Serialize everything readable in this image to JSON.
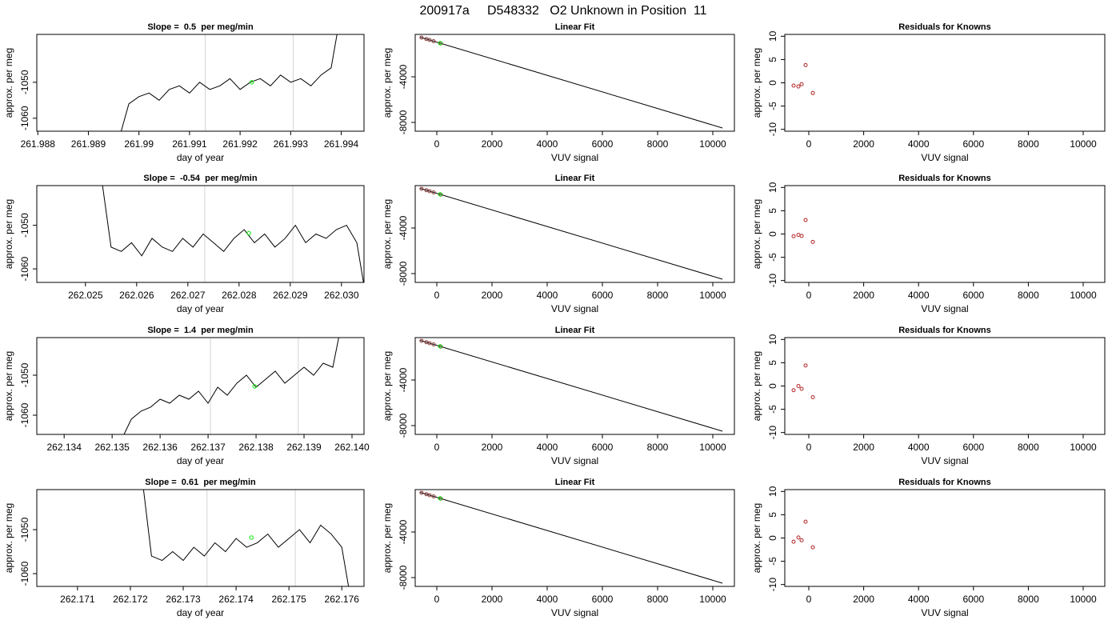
{
  "title": "200917a     D548332   O2 Unknown in Position  11",
  "chart_data": [
    {
      "type": "line",
      "title": "Slope =  0.5  per meg/min",
      "xlabel": "day of year",
      "ylabel": "approx. per meg",
      "x": [
        261.9896,
        261.9898,
        261.99,
        261.9902,
        261.9904,
        261.9906,
        261.9908,
        261.991,
        261.9912,
        261.9914,
        261.9916,
        261.9918,
        261.992,
        261.9922,
        261.9924,
        261.9926,
        261.9928,
        261.993,
        261.9932,
        261.9934,
        261.9936,
        261.9938,
        261.994
      ],
      "values": [
        -1066,
        -1056,
        -1054,
        -1053,
        -1055,
        -1052,
        -1051,
        -1053,
        -1050,
        -1052,
        -1051,
        -1049,
        -1052,
        -1050,
        -1049,
        -1051,
        -1048,
        -1050,
        -1049,
        -1051,
        -1048,
        -1046,
        -1030
      ],
      "color": "#000000",
      "vlines": [
        261.99131,
        261.99305
      ],
      "vline_color": "#d3d3d3",
      "marker": {
        "x": 261.99223,
        "y": -1050,
        "color": "#00ee00"
      },
      "xlim": [
        261.98798,
        261.99445
      ],
      "ylim": [
        -1063.6,
        -1036.7
      ],
      "xticks": [
        261.988,
        261.989,
        261.99,
        261.991,
        261.992,
        261.993,
        261.994
      ],
      "yticks": [
        -1060,
        -1050
      ]
    },
    {
      "type": "scatter",
      "title": "Linear Fit",
      "xlabel": "VUV signal",
      "ylabel": "approx. per meg",
      "x": [
        -554,
        -379,
        -262,
        -117,
        146
      ],
      "values": [
        -558,
        -685,
        -771,
        -876,
        -1067
      ],
      "color": "#8b3a3a",
      "fit": {
        "x": [
          -600,
          10350
        ],
        "values": [
          -525,
          -8491
        ],
        "color": "#000000"
      },
      "marker": {
        "x": 123,
        "y": -1050,
        "color": "#00ee00"
      },
      "xlim": [
        -783,
        10783
      ],
      "ylim": [
        -8772,
        -281
      ],
      "xticks": [
        0,
        2000,
        4000,
        6000,
        8000,
        10000
      ],
      "yticks": [
        -8000,
        -4000
      ]
    },
    {
      "type": "scatter",
      "title": "Residuals for Knowns",
      "xlabel": "VUV signal",
      "ylabel": "approx. per meg",
      "x": [
        -554,
        -379,
        -262,
        -117,
        146
      ],
      "values": [
        -0.6,
        -0.8,
        -0.3,
        3.8,
        -2.2
      ],
      "color": "#b22222",
      "xlim": [
        -875,
        10787
      ],
      "ylim": [
        -10.4,
        10.4
      ],
      "xticks": [
        0,
        2000,
        4000,
        6000,
        8000,
        10000
      ],
      "yticks": [
        -10,
        -5,
        0,
        5,
        10
      ]
    },
    {
      "type": "line",
      "title": "Slope =  -0.54  per meg/min",
      "xlabel": "day of year",
      "ylabel": "approx. per meg",
      "x": [
        262.0253,
        262.0255,
        262.0257,
        262.0259,
        262.0261,
        262.0263,
        262.0265,
        262.0267,
        262.0269,
        262.0271,
        262.0273,
        262.0275,
        262.0277,
        262.0279,
        262.0281,
        262.0283,
        262.0285,
        262.0287,
        262.0289,
        262.0291,
        262.0293,
        262.0295,
        262.0297,
        262.0299,
        262.0301,
        262.0303,
        262.0305
      ],
      "values": [
        -1038,
        -1055,
        -1056,
        -1054,
        -1057,
        -1053,
        -1055,
        -1056,
        -1053,
        -1055,
        -1052,
        -1054,
        -1056,
        -1053,
        -1051,
        -1054,
        -1052,
        -1055,
        -1053,
        -1050,
        -1054,
        -1052,
        -1053,
        -1051,
        -1050,
        -1054,
        -1068
      ],
      "color": "#000000",
      "vlines": [
        262.02733,
        262.02905
      ],
      "vline_color": "#d3d3d3",
      "marker": {
        "x": 262.02819,
        "y": -1051.8,
        "color": "#00ee00"
      },
      "xlim": [
        262.02405,
        262.03044
      ],
      "ylim": [
        -1063.1,
        -1040.9
      ],
      "xticks": [
        262.025,
        262.026,
        262.027,
        262.028,
        262.029,
        {
          "value": 262.03,
          "label": "262.030"
        }
      ],
      "yticks": [
        -1060,
        -1050
      ]
    },
    {
      "type": "scatter",
      "title": "Linear Fit",
      "xlabel": "VUV signal",
      "ylabel": "approx. per meg",
      "x": [
        -554,
        -379,
        -262,
        -117,
        146
      ],
      "values": [
        -558,
        -685,
        -771,
        -876,
        -1067
      ],
      "color": "#8b3a3a",
      "fit": {
        "x": [
          -600,
          10350
        ],
        "values": [
          -525,
          -8491
        ],
        "color": "#000000"
      },
      "marker": {
        "x": 123,
        "y": -1050,
        "color": "#00ee00"
      },
      "xlim": [
        -783,
        10783
      ],
      "ylim": [
        -8772,
        -281
      ],
      "xticks": [
        0,
        2000,
        4000,
        6000,
        8000,
        10000
      ],
      "yticks": [
        -8000,
        -4000
      ]
    },
    {
      "type": "scatter",
      "title": "Residuals for Knowns",
      "xlabel": "VUV signal",
      "ylabel": "approx. per meg",
      "x": [
        -554,
        -379,
        -262,
        -117,
        146
      ],
      "values": [
        -0.5,
        -0.2,
        -0.4,
        3.0,
        -1.7
      ],
      "color": "#b22222",
      "xlim": [
        -875,
        10787
      ],
      "ylim": [
        -10.4,
        10.4
      ],
      "xticks": [
        0,
        2000,
        4000,
        6000,
        8000,
        10000
      ],
      "yticks": [
        -10,
        -5,
        0,
        5,
        10
      ]
    },
    {
      "type": "line",
      "title": "Slope =  1.4  per meg/min",
      "xlabel": "day of year",
      "ylabel": "approx. per meg",
      "x": [
        262.1352,
        262.1354,
        262.1356,
        262.1358,
        262.136,
        262.1362,
        262.1364,
        262.1366,
        262.1368,
        262.137,
        262.1372,
        262.1374,
        262.1376,
        262.1378,
        262.138,
        262.1382,
        262.1384,
        262.1386,
        262.1388,
        262.139,
        262.1392,
        262.1394,
        262.1396,
        262.1398
      ],
      "values": [
        -1066,
        -1061,
        -1059,
        -1058,
        -1056,
        -1057,
        -1055,
        -1056,
        -1054,
        -1057,
        -1053,
        -1055,
        -1052,
        -1050,
        -1053,
        -1051,
        -1049,
        -1052,
        -1050,
        -1048,
        -1050,
        -1047,
        -1048,
        -1036
      ],
      "color": "#000000",
      "vlines": [
        262.13705,
        262.13888
      ],
      "vline_color": "#d3d3d3",
      "marker": {
        "x": 262.13797,
        "y": -1052.8,
        "color": "#00ee00"
      },
      "xlim": [
        262.13343,
        262.14025
      ],
      "ylim": [
        -1064.8,
        -1040.6
      ],
      "xticks": [
        262.134,
        262.135,
        262.136,
        262.137,
        262.138,
        262.139,
        {
          "value": 262.14,
          "label": "262.140"
        }
      ],
      "yticks": [
        -1060,
        -1050
      ]
    },
    {
      "type": "scatter",
      "title": "Linear Fit",
      "xlabel": "VUV signal",
      "ylabel": "approx. per meg",
      "x": [
        -554,
        -379,
        -262,
        -117,
        146
      ],
      "values": [
        -558,
        -685,
        -771,
        -876,
        -1067
      ],
      "color": "#8b3a3a",
      "fit": {
        "x": [
          -600,
          10350
        ],
        "values": [
          -525,
          -8491
        ],
        "color": "#000000"
      },
      "marker": {
        "x": 123,
        "y": -1050,
        "color": "#00ee00"
      },
      "xlim": [
        -783,
        10783
      ],
      "ylim": [
        -8772,
        -281
      ],
      "xticks": [
        0,
        2000,
        4000,
        6000,
        8000,
        10000
      ],
      "yticks": [
        -8000,
        -4000
      ]
    },
    {
      "type": "scatter",
      "title": "Residuals for Knowns",
      "xlabel": "VUV signal",
      "ylabel": "approx. per meg",
      "x": [
        -554,
        -379,
        -262,
        -117,
        146
      ],
      "values": [
        -0.9,
        0.0,
        -0.6,
        4.4,
        -2.4
      ],
      "color": "#b22222",
      "xlim": [
        -875,
        10787
      ],
      "ylim": [
        -10.4,
        10.4
      ],
      "xticks": [
        0,
        2000,
        4000,
        6000,
        8000,
        10000
      ],
      "yticks": [
        -10,
        -5,
        0,
        5,
        10
      ]
    },
    {
      "type": "line",
      "title": "Slope =  0.61  per meg/min",
      "xlabel": "day of year",
      "ylabel": "approx. per meg",
      "x": [
        262.1722,
        262.1724,
        262.1726,
        262.1728,
        262.173,
        262.1732,
        262.1734,
        262.1736,
        262.1738,
        262.174,
        262.1742,
        262.1744,
        262.1746,
        262.1748,
        262.175,
        262.1752,
        262.1754,
        262.1756,
        262.1758,
        262.176,
        262.1762
      ],
      "values": [
        -1036,
        -1056,
        -1057,
        -1055,
        -1057,
        -1054,
        -1056,
        -1053,
        -1055,
        -1052,
        -1054,
        -1053,
        -1051,
        -1054,
        -1052,
        -1050,
        -1053,
        -1049,
        -1051,
        -1054,
        -1068
      ],
      "color": "#000000",
      "vlines": [
        262.17345,
        262.17512
      ],
      "vline_color": "#d3d3d3",
      "marker": {
        "x": 262.17429,
        "y": -1051.8,
        "color": "#00ee00"
      },
      "xlim": [
        262.17023,
        262.17642
      ],
      "ylim": [
        -1062.9,
        -1040.9
      ],
      "xticks": [
        262.171,
        262.172,
        262.173,
        262.174,
        262.175,
        262.176
      ],
      "yticks": [
        -1060,
        -1050
      ]
    },
    {
      "type": "scatter",
      "title": "Linear Fit",
      "xlabel": "VUV signal",
      "ylabel": "approx. per meg",
      "x": [
        -554,
        -379,
        -262,
        -117,
        146
      ],
      "values": [
        -558,
        -685,
        -771,
        -876,
        -1067
      ],
      "color": "#8b3a3a",
      "fit": {
        "x": [
          -600,
          10350
        ],
        "values": [
          -525,
          -8491
        ],
        "color": "#000000"
      },
      "marker": {
        "x": 123,
        "y": -1050,
        "color": "#00ee00"
      },
      "xlim": [
        -783,
        10783
      ],
      "ylim": [
        -8772,
        -281
      ],
      "xticks": [
        0,
        2000,
        4000,
        6000,
        8000,
        10000
      ],
      "yticks": [
        -8000,
        -4000
      ]
    },
    {
      "type": "scatter",
      "title": "Residuals for Knowns",
      "xlabel": "VUV signal",
      "ylabel": "approx. per meg",
      "x": [
        -554,
        -379,
        -262,
        -117,
        146
      ],
      "values": [
        -0.8,
        0.1,
        -0.5,
        3.5,
        -2.0
      ],
      "color": "#b22222",
      "xlim": [
        -875,
        10787
      ],
      "ylim": [
        -10.4,
        10.4
      ],
      "xticks": [
        0,
        2000,
        4000,
        6000,
        8000,
        10000
      ],
      "yticks": [
        -10,
        -5,
        0,
        5,
        10
      ]
    }
  ]
}
